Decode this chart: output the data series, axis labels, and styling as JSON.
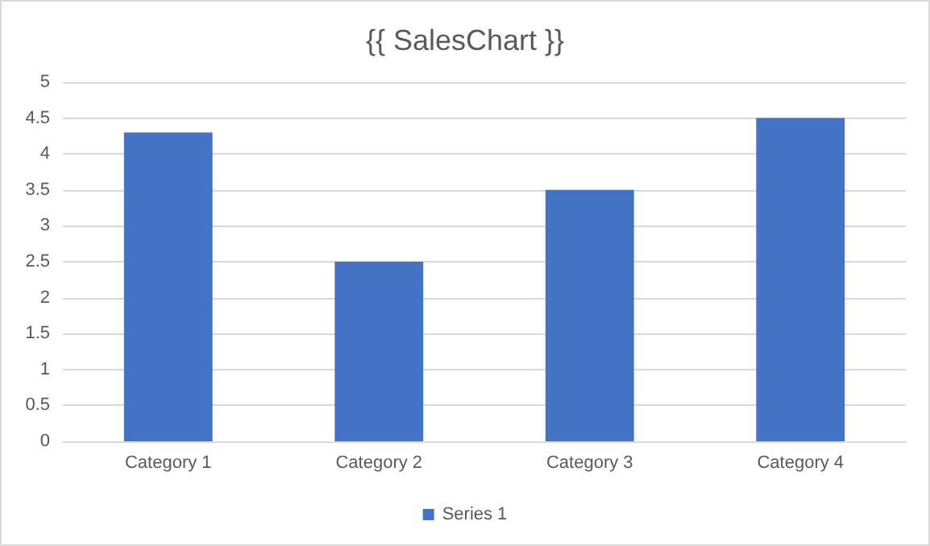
{
  "chart_data": {
    "type": "bar",
    "title": "{{ SalesChart }}",
    "categories": [
      "Category 1",
      "Category 2",
      "Category 3",
      "Category 4"
    ],
    "series": [
      {
        "name": "Series 1",
        "color": "#4472c4",
        "values": [
          4.3,
          2.5,
          3.5,
          4.5
        ]
      }
    ],
    "ylim": [
      0,
      5
    ],
    "yticks": [
      0,
      0.5,
      1,
      1.5,
      2,
      2.5,
      3,
      3.5,
      4,
      4.5,
      5
    ],
    "grid": "y",
    "legend": "bottom"
  }
}
